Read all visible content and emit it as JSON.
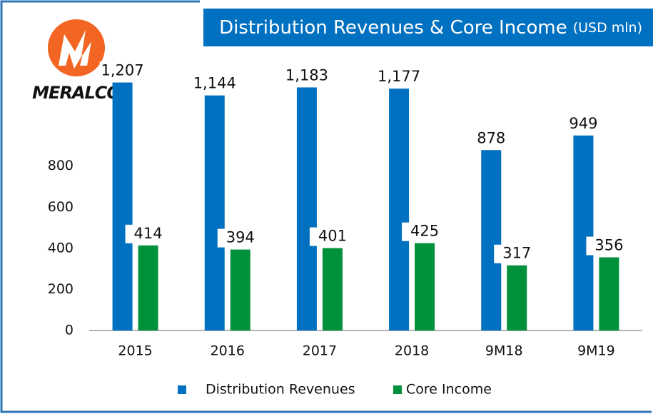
{
  "logo": "MERALCO",
  "chart_data": {
    "type": "bar",
    "title": "Distribution Revenues & Core Income",
    "subtitle": "(USD mln)",
    "categories": [
      "2015",
      "2016",
      "2017",
      "2018",
      "9M18",
      "9M19"
    ],
    "series": [
      {
        "name": "Distribution Revenues",
        "color": "#0070c0",
        "values": [
          1207,
          1144,
          1183,
          1177,
          878,
          949
        ],
        "value_labels": [
          "1,207",
          "1,144",
          "1,183",
          "1,177",
          "878",
          "949"
        ]
      },
      {
        "name": "Core Income",
        "color": "#00913a",
        "values": [
          414,
          394,
          401,
          425,
          317,
          356
        ]
      }
    ],
    "ylim": [
      0,
      1400
    ],
    "yticks": [
      0,
      200,
      400,
      600,
      800
    ],
    "legend": "bottom"
  }
}
